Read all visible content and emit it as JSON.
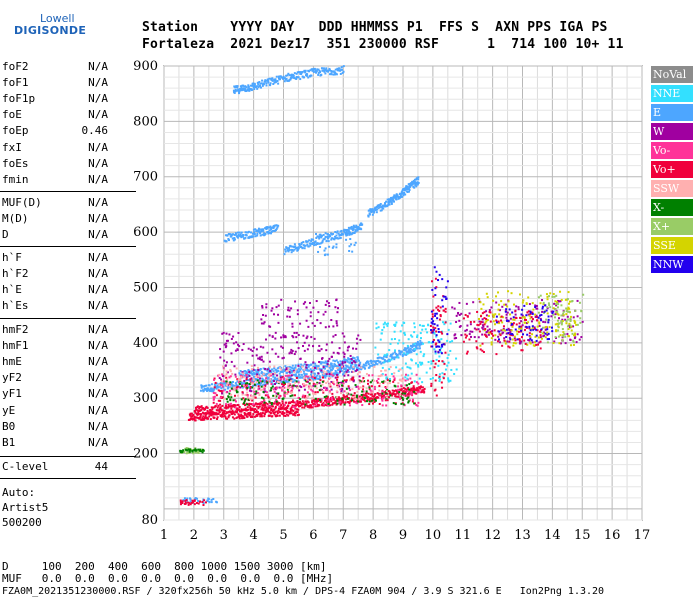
{
  "logo": {
    "top": "Lowell",
    "bottom": "DIGISONDE"
  },
  "header": {
    "line1": "Station    YYYY DAY   DDD HHMMSS P1  FFS S  AXN PPS IGA PS",
    "line2": "Fortaleza  2021 Dez17  351 230000 RSF      1  714 100 10+ 11"
  },
  "params": {
    "group1": [
      {
        "label": "foF2",
        "value": "N/A"
      },
      {
        "label": "foF1",
        "value": "N/A"
      },
      {
        "label": "foF1p",
        "value": "N/A"
      },
      {
        "label": "foE",
        "value": "N/A"
      },
      {
        "label": "foEp",
        "value": "0.46"
      },
      {
        "label": "fxI",
        "value": "N/A"
      },
      {
        "label": "foEs",
        "value": "N/A"
      },
      {
        "label": "fmin",
        "value": "N/A"
      }
    ],
    "group2": [
      {
        "label": "MUF(D)",
        "value": "N/A"
      },
      {
        "label": "M(D)",
        "value": "N/A"
      },
      {
        "label": "D",
        "value": "N/A"
      }
    ],
    "group3": [
      {
        "label": "h`F",
        "value": "N/A"
      },
      {
        "label": "h`F2",
        "value": "N/A"
      },
      {
        "label": "h`E",
        "value": "N/A"
      },
      {
        "label": "h`Es",
        "value": "N/A"
      }
    ],
    "group4": [
      {
        "label": "hmF2",
        "value": "N/A"
      },
      {
        "label": "hmF1",
        "value": "N/A"
      },
      {
        "label": "hmE",
        "value": "N/A"
      },
      {
        "label": "yF2",
        "value": "N/A"
      },
      {
        "label": "yF1",
        "value": "N/A"
      },
      {
        "label": "yE",
        "value": "N/A"
      },
      {
        "label": "B0",
        "value": "N/A"
      },
      {
        "label": "B1",
        "value": "N/A"
      }
    ],
    "clevel": {
      "label": "C-level",
      "value": "44"
    },
    "auto": [
      "Auto:",
      "Artist5",
      "500200"
    ]
  },
  "bottom": {
    "line1": "D     100  200  400  600  800 1000 1500 3000 [km]",
    "line2": "MUF   0.0  0.0  0.0  0.0  0.0  0.0  0.0  0.0 [MHz]",
    "line3": "FZA0M_2021351230000.RSF / 320fx256h 50 kHz 5.0 km / DPS-4 FZA0M 904 / 3.9 S 321.6 E   Ion2Png 1.3.20"
  },
  "legend": [
    {
      "label": "NoVal",
      "color": "#8c8c8c"
    },
    {
      "label": "NNE",
      "color": "#33e0ff"
    },
    {
      "label": "E",
      "color": "#4da6ff"
    },
    {
      "label": "W",
      "color": "#a000a0"
    },
    {
      "label": "Vo-",
      "color": "#ff3399"
    },
    {
      "label": "Vo+",
      "color": "#f0003c"
    },
    {
      "label": "SSW",
      "color": "#ffb0b0"
    },
    {
      "label": "X-",
      "color": "#008000"
    },
    {
      "label": "X+",
      "color": "#99cc66"
    },
    {
      "label": "SSE",
      "color": "#d4d400"
    },
    {
      "label": "NNW",
      "color": "#2200ee"
    }
  ],
  "chart_data": {
    "type": "scatter",
    "xlim": [
      1,
      17
    ],
    "ylim": [
      80,
      900
    ],
    "x_ticks": [
      1,
      2,
      3,
      4,
      5,
      6,
      7,
      8,
      9,
      10,
      11,
      12,
      13,
      14,
      15,
      16,
      17
    ],
    "y_ticks": [
      80,
      200,
      300,
      400,
      500,
      600,
      700,
      800,
      900
    ],
    "grid": true,
    "legend_position": "right",
    "traces": [
      {
        "mode": "E",
        "color": "#4da6ff",
        "points": [
          [
            2.2,
            318
          ],
          [
            3,
            324
          ],
          [
            4,
            330
          ],
          [
            5,
            336
          ],
          [
            6,
            342
          ],
          [
            7,
            352
          ],
          [
            8,
            366
          ],
          [
            9,
            385
          ],
          [
            9.6,
            400
          ]
        ]
      },
      {
        "mode": "E",
        "color": "#4da6ff",
        "points": [
          [
            3.5,
            345
          ],
          [
            4.5,
            350
          ],
          [
            5.5,
            356
          ],
          [
            6.5,
            362
          ],
          [
            7.5,
            372
          ]
        ]
      },
      {
        "mode": "E",
        "color": "#4da6ff",
        "points": [
          [
            5,
            568
          ],
          [
            6,
            585
          ],
          [
            7,
            600
          ],
          [
            7.6,
            612
          ]
        ]
      },
      {
        "mode": "E",
        "color": "#4da6ff",
        "points": [
          [
            7.8,
            635
          ],
          [
            8.5,
            655
          ],
          [
            9,
            675
          ],
          [
            9.5,
            695
          ]
        ]
      },
      {
        "mode": "E",
        "color": "#4da6ff",
        "points": [
          [
            3,
            590
          ],
          [
            4,
            600
          ],
          [
            4.8,
            608
          ]
        ]
      },
      {
        "mode": "E",
        "color": "#4da6ff",
        "points": [
          [
            3.3,
            858
          ],
          [
            4,
            865
          ],
          [
            5,
            880
          ],
          [
            6,
            890
          ],
          [
            7,
            895
          ]
        ]
      },
      {
        "mode": "Vo+",
        "color": "#f0003c",
        "points": [
          [
            2,
            280
          ],
          [
            3,
            282
          ],
          [
            4,
            286
          ],
          [
            5,
            288
          ],
          [
            6,
            292
          ],
          [
            7,
            298
          ],
          [
            8,
            305
          ],
          [
            9,
            312
          ],
          [
            9.7,
            318
          ]
        ]
      },
      {
        "mode": "Vo+",
        "color": "#f0003c",
        "points": [
          [
            1.8,
            268
          ],
          [
            2.5,
            270
          ],
          [
            3.5,
            272
          ],
          [
            4.5,
            275
          ],
          [
            5.5,
            278
          ]
        ]
      }
    ],
    "clusters": [
      {
        "mode": "E",
        "color": "#4da6ff",
        "x": [
          1.5,
          2.8
        ],
        "y": [
          112,
          122
        ]
      },
      {
        "mode": "Vo+",
        "color": "#f0003c",
        "x": [
          1.5,
          2.4
        ],
        "y": [
          108,
          118
        ]
      },
      {
        "mode": "X+",
        "color": "#99cc66",
        "x": [
          1.5,
          2.3
        ],
        "y": [
          202,
          212
        ]
      },
      {
        "mode": "X-",
        "color": "#008000",
        "x": [
          1.5,
          2.3
        ],
        "y": [
          204,
          210
        ]
      },
      {
        "mode": "W",
        "color": "#a000a0",
        "x": [
          2.8,
          7.6
        ],
        "y": [
          310,
          420
        ]
      },
      {
        "mode": "Vo+",
        "color": "#f0003c",
        "x": [
          2.6,
          9.4
        ],
        "y": [
          290,
          340
        ]
      },
      {
        "mode": "Vo-",
        "color": "#ff3399",
        "x": [
          2.6,
          9.6
        ],
        "y": [
          285,
          345
        ]
      },
      {
        "mode": "X-",
        "color": "#008000",
        "x": [
          3,
          9.4
        ],
        "y": [
          290,
          335
        ]
      },
      {
        "mode": "NNE",
        "color": "#33e0ff",
        "x": [
          8,
          10.8
        ],
        "y": [
          330,
          440
        ]
      },
      {
        "mode": "Vo+",
        "color": "#f0003c",
        "x": [
          9.9,
          10.4
        ],
        "y": [
          300,
          520
        ]
      },
      {
        "mode": "NNW",
        "color": "#2200ee",
        "x": [
          9.9,
          10.5
        ],
        "y": [
          380,
          540
        ]
      },
      {
        "mode": "W",
        "color": "#a000a0",
        "x": [
          10.6,
          15
        ],
        "y": [
          400,
          480
        ]
      },
      {
        "mode": "SSE",
        "color": "#d4d400",
        "x": [
          11.5,
          14.8
        ],
        "y": [
          395,
          495
        ]
      },
      {
        "mode": "X+",
        "color": "#99cc66",
        "x": [
          13.5,
          15
        ],
        "y": [
          400,
          490
        ]
      },
      {
        "mode": "Vo+",
        "color": "#f0003c",
        "x": [
          11,
          13.6
        ],
        "y": [
          380,
          460
        ]
      },
      {
        "mode": "NNW",
        "color": "#2200ee",
        "x": [
          12,
          14
        ],
        "y": [
          405,
          470
        ]
      },
      {
        "mode": "SSW",
        "color": "#ffb0b0",
        "x": [
          2.8,
          9
        ],
        "y": [
          300,
          360
        ]
      },
      {
        "mode": "W",
        "color": "#a000a0",
        "x": [
          4.2,
          6.8
        ],
        "y": [
          430,
          480
        ]
      },
      {
        "mode": "E",
        "color": "#4da6ff",
        "x": [
          6,
          7.5
        ],
        "y": [
          560,
          600
        ]
      }
    ]
  }
}
